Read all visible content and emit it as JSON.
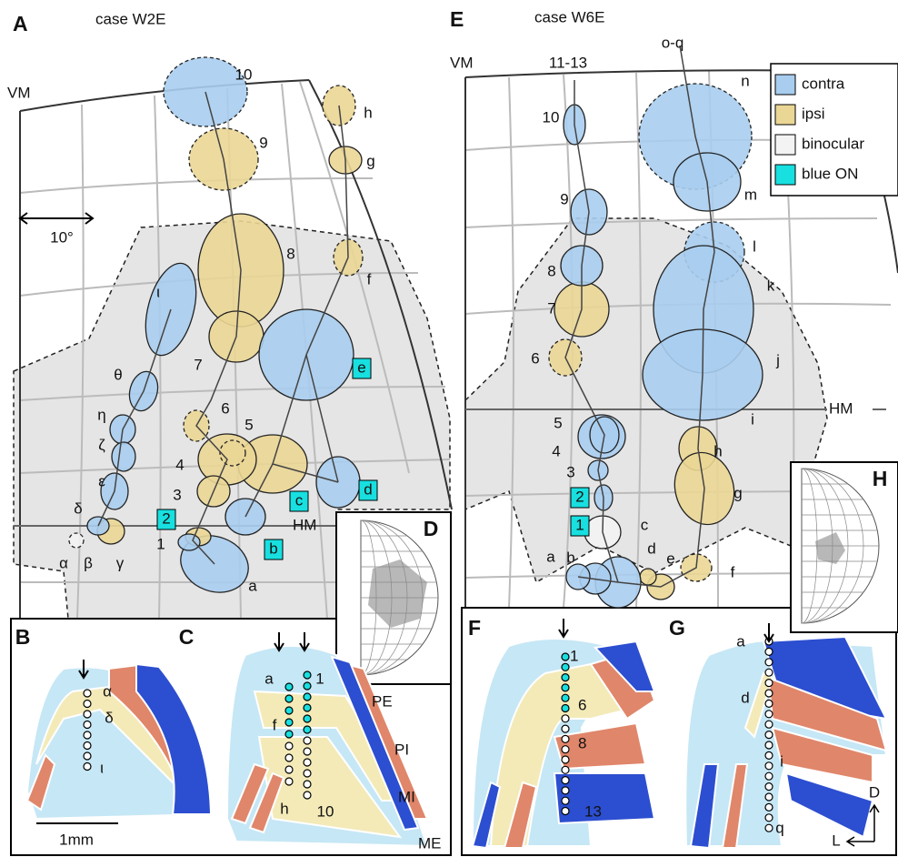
{
  "panel_a": {
    "label": "A",
    "title": "case W2E",
    "vm": "VM",
    "hm": "HM",
    "scale": "10°",
    "fields": [
      "10",
      "9",
      "8",
      "7",
      "6",
      "5",
      "4",
      "3",
      "2",
      "1",
      "a",
      "b",
      "c",
      "d",
      "e",
      "f",
      "g",
      "h",
      "ι",
      "θ",
      "η",
      "ζ",
      "ε",
      "δ",
      "α",
      "β",
      "γ"
    ]
  },
  "panel_e": {
    "label": "E",
    "title": "case W6E",
    "vm": "VM",
    "hm": "HM",
    "arrows": [
      "11-13",
      "o-q"
    ],
    "fields": [
      "10",
      "9",
      "8",
      "7",
      "6",
      "5",
      "4",
      "3",
      "2",
      "1",
      "a",
      "b",
      "c",
      "d",
      "e",
      "f",
      "g",
      "h",
      "i",
      "j",
      "k",
      "l",
      "m",
      "n"
    ]
  },
  "legend": [
    "contra",
    "ipsi",
    "binocular",
    "blue ON"
  ],
  "panel_d": {
    "label": "D"
  },
  "panel_h": {
    "label": "H"
  },
  "panel_b": {
    "label": "B",
    "sites": [
      "α",
      "δ",
      "ι"
    ],
    "scale": "1mm"
  },
  "panel_c": {
    "label": "C",
    "sites": [
      "a",
      "f",
      "h",
      "1",
      "10"
    ],
    "layers": [
      "PE",
      "PI",
      "MI",
      "ME"
    ]
  },
  "panel_f": {
    "label": "F",
    "sites": [
      "1",
      "6",
      "8",
      "13"
    ]
  },
  "panel_g": {
    "label": "G",
    "sites": [
      "a",
      "d",
      "i",
      "q"
    ],
    "compass": [
      "D",
      "L"
    ]
  }
}
